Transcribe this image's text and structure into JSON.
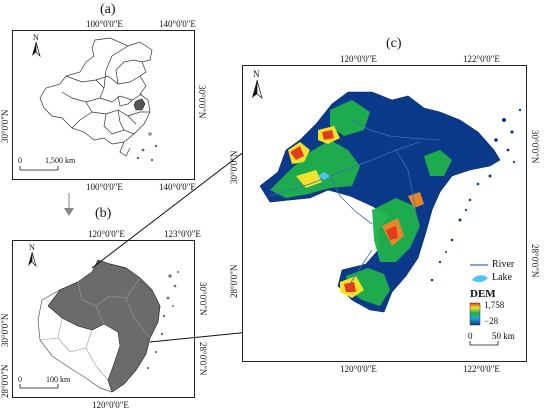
{
  "panel_a": {
    "label": "(a)",
    "top_ticks": [
      "100°0'0\"E",
      "140°0'0\"E"
    ],
    "bottom_ticks": [
      "100°0'0\"E",
      "140°0'0\"E"
    ],
    "left_tick": "30°0'0\"N",
    "right_tick": "30°0'0\"N",
    "scale_start": "0",
    "scale_end": "1,500 km",
    "north": "N"
  },
  "panel_b": {
    "label": "(b)",
    "top_ticks": [
      "120°0'0\"E",
      "123°0'0\"E"
    ],
    "bottom_tick": "120°0'0\"E",
    "left_ticks": [
      "30°0'0\"N",
      "28°0'0\"N"
    ],
    "right_ticks": [
      "30°0'0\"N",
      "28°0'0\"N"
    ],
    "scale_start": "0",
    "scale_end": "100 km",
    "north": "N"
  },
  "panel_c": {
    "label": "(c)",
    "top_ticks": [
      "120°0'0\"E",
      "122°0'0\"E"
    ],
    "bottom_ticks": [
      "120°0'0\"E",
      "122°0'0\"E"
    ],
    "left_ticks": [
      "30°0'0\"N",
      "28°0'0\"N"
    ],
    "right_ticks": [
      "30°0'0\"N",
      "28°0'0\"N"
    ],
    "north": "N",
    "legend": {
      "river": "River",
      "lake": "Lake",
      "dem_title": "DEM",
      "dem_max": "1,758",
      "dem_min": "−28",
      "scale_start": "0",
      "scale_end": "50 km"
    }
  },
  "colors": {
    "china_fill": "#ffffff",
    "province_fill": "#6b6b6b",
    "lake": "#4fc3f7",
    "river": "#3b6fb6",
    "dem_low": "#0b3a8a",
    "dem_mid": "#1fb24a",
    "dem_high": "#e53b1d"
  }
}
